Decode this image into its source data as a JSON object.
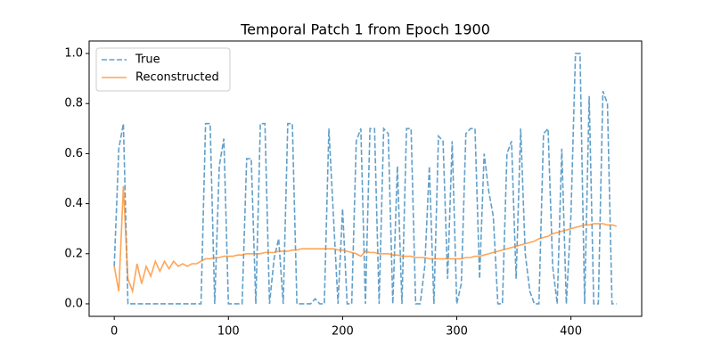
{
  "chart_data": {
    "type": "line",
    "title": "Temporal Patch 1 from Epoch 1900",
    "x": [
      0,
      4,
      8,
      12,
      16,
      20,
      24,
      28,
      32,
      36,
      40,
      44,
      48,
      52,
      56,
      60,
      64,
      68,
      72,
      76,
      80,
      84,
      88,
      92,
      96,
      100,
      104,
      108,
      112,
      116,
      120,
      124,
      128,
      132,
      136,
      140,
      144,
      148,
      152,
      156,
      160,
      164,
      168,
      172,
      176,
      180,
      184,
      188,
      192,
      196,
      200,
      204,
      208,
      212,
      216,
      220,
      224,
      228,
      232,
      236,
      240,
      244,
      248,
      252,
      256,
      260,
      264,
      268,
      272,
      276,
      280,
      284,
      288,
      292,
      296,
      300,
      304,
      308,
      312,
      316,
      320,
      324,
      328,
      332,
      336,
      340,
      344,
      348,
      352,
      356,
      360,
      364,
      368,
      372,
      376,
      380,
      384,
      388,
      392,
      396,
      400,
      404,
      408,
      412,
      416,
      420,
      424,
      428,
      432,
      436,
      440
    ],
    "series": [
      {
        "name": "True",
        "color": "#1f77b4",
        "dash": true,
        "values": [
          0.15,
          0.62,
          0.72,
          0,
          0,
          0,
          0,
          0,
          0,
          0,
          0,
          0,
          0,
          0,
          0,
          0,
          0,
          0,
          0,
          0,
          0.72,
          0.72,
          0,
          0.55,
          0.66,
          0,
          0,
          0,
          0,
          0.58,
          0.58,
          0,
          0.72,
          0.72,
          0,
          0.18,
          0.26,
          0,
          0.72,
          0.72,
          0,
          0,
          0,
          0,
          0.02,
          0,
          0,
          0.7,
          0.35,
          0,
          0.38,
          0,
          0,
          0.65,
          0.7,
          0,
          0.7,
          0.7,
          0,
          0.7,
          0.68,
          0,
          0.55,
          0,
          0.7,
          0.7,
          0,
          0,
          0.15,
          0.55,
          0,
          0.67,
          0.65,
          0.1,
          0.65,
          0,
          0.08,
          0.68,
          0.7,
          0.7,
          0.1,
          0.6,
          0.45,
          0.35,
          0,
          0,
          0.6,
          0.65,
          0.1,
          0.7,
          0.2,
          0.05,
          0,
          0,
          0.68,
          0.7,
          0.15,
          0,
          0.62,
          0,
          0.35,
          1,
          1,
          0,
          0.83,
          0,
          0,
          0.85,
          0.8,
          0,
          0
        ]
      },
      {
        "name": "Reconstructed",
        "color": "#ff7f0e",
        "dash": false,
        "values": [
          0.15,
          0.05,
          0.47,
          0.1,
          0.05,
          0.16,
          0.08,
          0.15,
          0.11,
          0.17,
          0.13,
          0.17,
          0.14,
          0.17,
          0.15,
          0.16,
          0.15,
          0.16,
          0.16,
          0.17,
          0.18,
          0.18,
          0.185,
          0.185,
          0.19,
          0.19,
          0.19,
          0.195,
          0.195,
          0.2,
          0.2,
          0.2,
          0.2,
          0.205,
          0.205,
          0.205,
          0.21,
          0.21,
          0.21,
          0.215,
          0.215,
          0.22,
          0.22,
          0.22,
          0.22,
          0.22,
          0.22,
          0.22,
          0.22,
          0.215,
          0.215,
          0.21,
          0.205,
          0.2,
          0.19,
          0.21,
          0.205,
          0.205,
          0.2,
          0.2,
          0.2,
          0.195,
          0.195,
          0.19,
          0.19,
          0.19,
          0.185,
          0.185,
          0.185,
          0.18,
          0.18,
          0.18,
          0.18,
          0.18,
          0.18,
          0.18,
          0.18,
          0.185,
          0.185,
          0.19,
          0.19,
          0.195,
          0.2,
          0.205,
          0.21,
          0.215,
          0.22,
          0.225,
          0.23,
          0.235,
          0.24,
          0.245,
          0.25,
          0.26,
          0.265,
          0.27,
          0.28,
          0.285,
          0.29,
          0.295,
          0.3,
          0.305,
          0.31,
          0.315,
          0.315,
          0.32,
          0.32,
          0.32,
          0.315,
          0.315,
          0.31
        ]
      }
    ],
    "xlim": [
      -22,
      462
    ],
    "ylim": [
      -0.05,
      1.05
    ],
    "xticks": [
      0,
      100,
      200,
      300,
      400
    ],
    "yticks": [
      {
        "value": 0,
        "label": "0.0"
      },
      0.2,
      0.4,
      0.6,
      0.8,
      {
        "value": 1,
        "label": "1.0"
      }
    ],
    "legend": "upper left"
  }
}
